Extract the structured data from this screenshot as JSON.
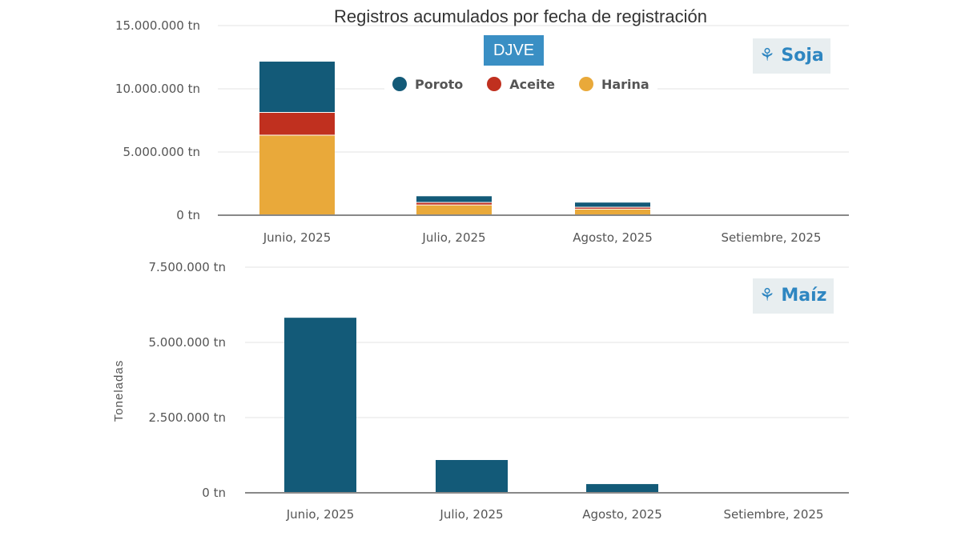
{
  "chart_data": [
    {
      "type": "bar",
      "stacked": true,
      "title": "Registros acumulados por fecha de registración",
      "subtitle": "DJVE",
      "badge": "Soja",
      "categories": [
        "Junio, 2025",
        "Julio, 2025",
        "Agosto, 2025",
        "Setiembre, 2025"
      ],
      "series": [
        {
          "name": "Harina",
          "color": "#e9a93a",
          "values": [
            6300000,
            780000,
            450000,
            0
          ]
        },
        {
          "name": "Aceite",
          "color": "#c0301f",
          "values": [
            1800000,
            200000,
            150000,
            0
          ]
        },
        {
          "name": "Poroto",
          "color": "#135a78",
          "values": [
            4050000,
            520000,
            400000,
            0
          ]
        }
      ],
      "legend_order": [
        "Poroto",
        "Aceite",
        "Harina"
      ],
      "yticks": [
        "0 tn",
        "5.000.000 tn",
        "10.000.000 tn",
        "15.000.000 tn"
      ],
      "ylim": [
        0,
        15000000
      ],
      "grid": true,
      "legend_placement": "top-center"
    },
    {
      "type": "bar",
      "badge": "Maíz",
      "ylabel": "Toneladas",
      "categories": [
        "Junio, 2025",
        "Julio, 2025",
        "Agosto, 2025",
        "Setiembre, 2025"
      ],
      "series": [
        {
          "name": "Maíz",
          "color": "#135a78",
          "values": [
            5820000,
            1090000,
            290000,
            0
          ]
        }
      ],
      "yticks": [
        "0 tn",
        "2.500.000 tn",
        "5.000.000 tn",
        "7.500.000 tn"
      ],
      "ylim": [
        0,
        7500000
      ],
      "grid": true
    }
  ]
}
